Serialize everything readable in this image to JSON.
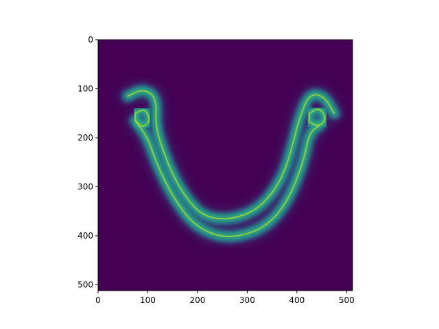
{
  "chart_data": {
    "type": "heatmap",
    "title": "",
    "xlabel": "",
    "ylabel": "",
    "xlim": [
      0,
      512
    ],
    "ylim": [
      512,
      0
    ],
    "y_inverted": true,
    "grid": false,
    "colormap": "viridis",
    "background_color": "#440154",
    "x_ticks": [
      0,
      100,
      200,
      300,
      400,
      500
    ],
    "y_ticks": [
      0,
      100,
      200,
      300,
      400,
      500
    ],
    "x_tick_labels": [
      "0",
      "100",
      "200",
      "300",
      "400",
      "500"
    ],
    "y_tick_labels": [
      "0",
      "100",
      "200",
      "300",
      "400",
      "500"
    ],
    "description_shape": "U-shaped band",
    "centerlines": {
      "outer": [
        [
          60,
          115
        ],
        [
          90,
          100
        ],
        [
          118,
          118
        ],
        [
          115,
          175
        ],
        [
          132,
          230
        ],
        [
          150,
          275
        ],
        [
          175,
          320
        ],
        [
          210,
          360
        ],
        [
          262,
          368
        ],
        [
          315,
          350
        ],
        [
          350,
          315
        ],
        [
          375,
          270
        ],
        [
          390,
          220
        ],
        [
          405,
          160
        ],
        [
          425,
          110
        ],
        [
          455,
          115
        ],
        [
          475,
          150
        ]
      ],
      "left_inner_loop": [
        [
          75,
          150
        ],
        [
          95,
          140
        ],
        [
          105,
          165
        ],
        [
          90,
          180
        ],
        [
          75,
          165
        ]
      ],
      "right_inner_loop": [
        [
          425,
          150
        ],
        [
          445,
          138
        ],
        [
          460,
          160
        ],
        [
          445,
          178
        ],
        [
          425,
          168
        ]
      ],
      "inner": [
        [
          75,
          165
        ],
        [
          100,
          200
        ],
        [
          115,
          245
        ],
        [
          135,
          290
        ],
        [
          160,
          335
        ],
        [
          195,
          380
        ],
        [
          250,
          405
        ],
        [
          310,
          395
        ],
        [
          350,
          370
        ],
        [
          380,
          330
        ],
        [
          400,
          285
        ],
        [
          415,
          240
        ],
        [
          425,
          190
        ],
        [
          445,
          175
        ]
      ]
    },
    "colors": {
      "band_low": "#31688e",
      "band_mid": "#21918c",
      "band_high": "#35b779",
      "peak": "#b5de2b",
      "peak_max": "#fde725"
    }
  }
}
